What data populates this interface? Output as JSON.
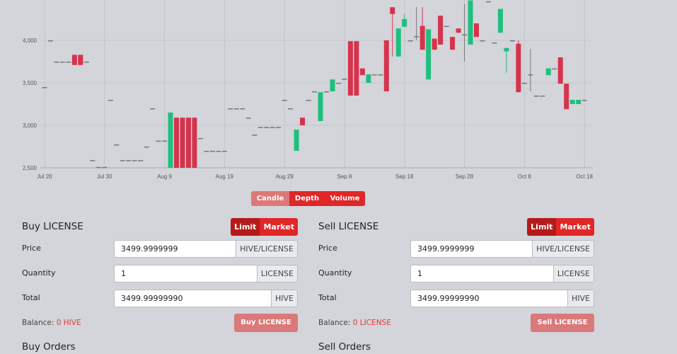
{
  "chart_data": {
    "type": "candlestick",
    "x": [
      0,
      1,
      2,
      3,
      4,
      5,
      6,
      7,
      8,
      9,
      10,
      11,
      12,
      13,
      14,
      15,
      16,
      17,
      18,
      19,
      20,
      21,
      22,
      23,
      24,
      25,
      26,
      27,
      28,
      29,
      30,
      31,
      32,
      33,
      34,
      35,
      36,
      37,
      38,
      39,
      40,
      41,
      42,
      43,
      44,
      45,
      46,
      47,
      48,
      49,
      50,
      51,
      52,
      53,
      54,
      55,
      56,
      57,
      58,
      59,
      60,
      61,
      62,
      63,
      64,
      65,
      66,
      67,
      68,
      69,
      70,
      71,
      72,
      73,
      74,
      75,
      76,
      77,
      78,
      79,
      80,
      81,
      82,
      83,
      84,
      85,
      86,
      87,
      88,
      89,
      90
    ],
    "open": [
      3450,
      4000,
      3750,
      3750,
      3750,
      3830,
      3830,
      3750,
      2590,
      2510,
      2510,
      3300,
      2775,
      2590,
      2590,
      2590,
      2590,
      2750,
      3200,
      2820,
      2820,
      2500,
      3090,
      3090,
      3090,
      3090,
      2850,
      2700,
      2700,
      2700,
      2700,
      3200,
      3200,
      3200,
      3090,
      2890,
      2980,
      2980,
      2980,
      2980,
      3300,
      3200,
      2700,
      3090,
      3300,
      3400,
      3050,
      3400,
      3400,
      3500,
      3550,
      3990,
      3990,
      3670,
      3500,
      3600,
      3600,
      4000,
      4390,
      3810,
      4160,
      4000,
      4050,
      4170,
      3540,
      4020,
      4290,
      4170,
      4040,
      4140,
      4070,
      3950,
      4200,
      4000,
      4460,
      3975,
      4090,
      3870,
      4000,
      3960,
      3500,
      3600,
      3350,
      3350,
      3590,
      3670,
      3800,
      3490,
      3250,
      3250,
      3300
    ],
    "high": [
      3450,
      4000,
      3750,
      3750,
      3750,
      3830,
      3830,
      3750,
      2590,
      2510,
      2510,
      3300,
      2775,
      2590,
      2590,
      2590,
      2590,
      2750,
      3200,
      2820,
      2820,
      3150,
      3090,
      3090,
      3090,
      3090,
      2850,
      2700,
      2700,
      2700,
      2700,
      3200,
      3200,
      3200,
      3090,
      2890,
      2980,
      2980,
      2980,
      2980,
      3300,
      3200,
      2950,
      3090,
      3300,
      3400,
      3390,
      3400,
      3540,
      3500,
      3550,
      3990,
      3990,
      3670,
      3600,
      3600,
      3600,
      4000,
      4390,
      4140,
      4310,
      4000,
      4390,
      4390,
      4130,
      4020,
      4290,
      4170,
      4040,
      4140,
      4430,
      4470,
      4200,
      4000,
      4460,
      3975,
      4370,
      3910,
      4000,
      4000,
      3500,
      3900,
      3350,
      3350,
      3670,
      3670,
      3800,
      3490,
      3300,
      3300,
      3300
    ],
    "low": [
      3450,
      4000,
      3750,
      3750,
      3750,
      3710,
      3710,
      3750,
      2590,
      2510,
      2510,
      3300,
      2775,
      2590,
      2590,
      2590,
      2590,
      2750,
      3200,
      2820,
      2820,
      2500,
      2500,
      2500,
      2500,
      2500,
      2850,
      2700,
      2700,
      2700,
      2700,
      3200,
      3200,
      3200,
      3090,
      2890,
      2980,
      2980,
      2980,
      2980,
      3300,
      3200,
      2700,
      3000,
      3300,
      3400,
      3050,
      3400,
      3400,
      3500,
      3550,
      3350,
      3350,
      3590,
      3500,
      3600,
      3600,
      3400,
      3810,
      3810,
      4160,
      4000,
      4000,
      3890,
      3540,
      3890,
      3950,
      4170,
      3890,
      4090,
      3750,
      3950,
      4040,
      4000,
      4460,
      3975,
      4090,
      3620,
      4000,
      3390,
      3500,
      3400,
      3350,
      3350,
      3590,
      3670,
      3490,
      3190,
      3250,
      3250,
      3300
    ],
    "close": [
      3450,
      4000,
      3750,
      3750,
      3750,
      3710,
      3710,
      3750,
      2590,
      2510,
      2510,
      3300,
      2775,
      2590,
      2590,
      2590,
      2590,
      2750,
      3200,
      2820,
      2820,
      3150,
      2500,
      2500,
      2500,
      2500,
      2850,
      2700,
      2700,
      2700,
      2700,
      3200,
      3200,
      3200,
      3090,
      2890,
      2980,
      2980,
      2980,
      2980,
      3300,
      3200,
      2950,
      3000,
      3300,
      3400,
      3390,
      3400,
      3540,
      3500,
      3550,
      3350,
      3350,
      3590,
      3600,
      3600,
      3600,
      3400,
      4310,
      4140,
      4250,
      4000,
      4050,
      3890,
      4130,
      3890,
      3950,
      4170,
      3890,
      4090,
      4070,
      4470,
      4040,
      4000,
      4460,
      3975,
      4370,
      3910,
      4000,
      3390,
      3500,
      3600,
      3350,
      3350,
      3670,
      3670,
      3490,
      3190,
      3300,
      3300,
      3300
    ],
    "up_color": "#1fbf7f",
    "down_color": "#d6334c",
    "xlim": [
      -0.7,
      91.4
    ],
    "xticks": [
      {
        "value": 0,
        "label": "Jul 20"
      },
      {
        "value": 10,
        "label": "Jul 30"
      },
      {
        "value": 20,
        "label": "Aug 9"
      },
      {
        "value": 30,
        "label": "Aug 19"
      },
      {
        "value": 40,
        "label": "Aug 29"
      },
      {
        "value": 50,
        "label": "Sep 8"
      },
      {
        "value": 60,
        "label": "Sep 18"
      },
      {
        "value": 70,
        "label": "Sep 28"
      },
      {
        "value": 80,
        "label": "Oct 8"
      },
      {
        "value": 90,
        "label": "Oct 18"
      }
    ],
    "ylim": [
      2500,
      4475
    ],
    "yticks": [
      {
        "value": 2500,
        "label": "2,500"
      },
      {
        "value": 3000,
        "label": "3,000"
      },
      {
        "value": 3500,
        "label": "3,500"
      },
      {
        "value": 4000,
        "label": "4,000"
      }
    ],
    "grid": true
  },
  "chart_tabs": [
    "Candle",
    "Depth",
    "Volume"
  ],
  "buy": {
    "title": "Buy LICENSE",
    "order_types": [
      "Limit",
      "Market"
    ],
    "fields": [
      {
        "label": "Price",
        "value": "3499.9999999",
        "unit": "HIVE/LICENSE"
      },
      {
        "label": "Quantity",
        "value": "1",
        "unit": "LICENSE"
      },
      {
        "label": "Total",
        "value": "3499.99999990",
        "unit": "HIVE"
      }
    ],
    "balance_label": "Balance:",
    "balance": "0 HIVE",
    "button": "Buy LICENSE",
    "orders_title": "Buy Orders"
  },
  "sell": {
    "title": "Sell LICENSE",
    "order_types": [
      "Limit",
      "Market"
    ],
    "fields": [
      {
        "label": "Price",
        "value": "3499.9999999",
        "unit": "HIVE/LICENSE"
      },
      {
        "label": "Quantity",
        "value": "1",
        "unit": "LICENSE"
      },
      {
        "label": "Total",
        "value": "3499.99999990",
        "unit": "HIVE"
      }
    ],
    "balance_label": "Balance:",
    "balance": "0 LICENSE",
    "button": "Sell LICENSE",
    "orders_title": "Sell Orders"
  }
}
